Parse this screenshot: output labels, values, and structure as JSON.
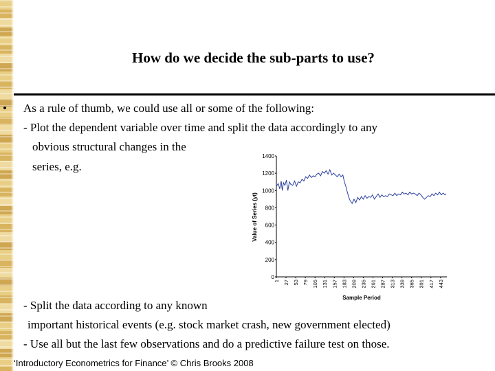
{
  "slide": {
    "title": "How do we decide the sub-parts to use?",
    "bullet_symbol": "•",
    "lines": [
      "As a rule of thumb, we could use all or some of the following:",
      "- Plot the dependent variable over time and split the data accordingly to any",
      "obvious structural changes in the",
      "series, e.g.",
      "- Split the data according to any known",
      "important historical events (e.g. stock market crash, new government elected)",
      "- Use all but the last few observations and do a predictive failure test on those."
    ],
    "footer": "‘Introductory Econometrics for Finance’ © Chris Brooks 2008"
  },
  "chart_data": {
    "type": "line",
    "xlabel": "Sample Period",
    "ylabel": "Value of Series (yt)",
    "ylim": [
      0,
      1400
    ],
    "yticks": [
      0,
      200,
      400,
      600,
      800,
      1000,
      1200,
      1400
    ],
    "xticks": [
      1,
      27,
      53,
      79,
      105,
      131,
      157,
      183,
      209,
      235,
      261,
      287,
      313,
      339,
      365,
      391,
      417,
      443
    ],
    "xlim": [
      1,
      460
    ],
    "grid": false,
    "series": [
      {
        "color": "#2a3fa0",
        "x": [
          1,
          6,
          10,
          14,
          17,
          20,
          24,
          28,
          32,
          36,
          40,
          45,
          50,
          55,
          60,
          65,
          70,
          75,
          80,
          85,
          90,
          95,
          100,
          105,
          110,
          115,
          120,
          125,
          130,
          135,
          140,
          145,
          150,
          155,
          160,
          165,
          170,
          175,
          180,
          184,
          188,
          192,
          196,
          200,
          205,
          210,
          215,
          220,
          225,
          230,
          235,
          240,
          245,
          250,
          255,
          260,
          265,
          270,
          275,
          280,
          285,
          290,
          295,
          300,
          305,
          310,
          315,
          320,
          325,
          330,
          335,
          340,
          345,
          350,
          355,
          360,
          365,
          370,
          375,
          380,
          385,
          390,
          395,
          400,
          405,
          410,
          415,
          420,
          425,
          430,
          435,
          440,
          445,
          450,
          455,
          458
        ],
        "y": [
          1050,
          1080,
          1020,
          1110,
          1000,
          1090,
          1060,
          1120,
          1000,
          1100,
          1070,
          1060,
          1110,
          1050,
          1100,
          1090,
          1130,
          1110,
          1160,
          1140,
          1180,
          1150,
          1170,
          1160,
          1190,
          1200,
          1170,
          1220,
          1200,
          1230,
          1190,
          1240,
          1180,
          1200,
          1180,
          1160,
          1190,
          1160,
          1180,
          1100,
          1050,
          980,
          920,
          880,
          850,
          900,
          860,
          920,
          890,
          930,
          900,
          940,
          910,
          930,
          920,
          950,
          900,
          930,
          960,
          920,
          950,
          930,
          940,
          930,
          960,
          950,
          940,
          970,
          940,
          960,
          950,
          980,
          960,
          970,
          950,
          980,
          960,
          970,
          960,
          940,
          970,
          950,
          920,
          900,
          920,
          940,
          930,
          960,
          940,
          970,
          950,
          980,
          950,
          970,
          950,
          960
        ]
      }
    ]
  }
}
